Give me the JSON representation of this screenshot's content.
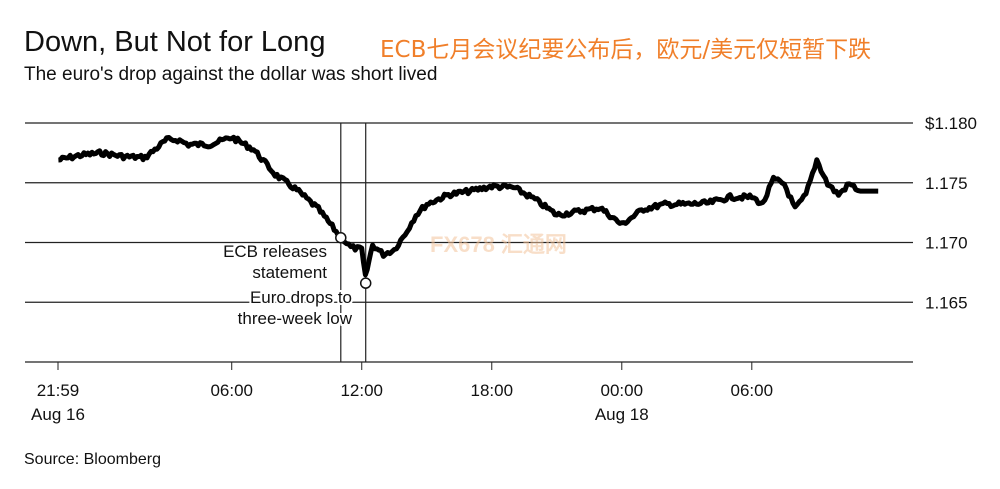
{
  "header": {
    "title": "Down, But Not for Long",
    "overlay_title": "ECB七月会议纪要公布后，欧元/美元仅短暂下跌",
    "subtitle": "The euro's drop against the dollar was short lived"
  },
  "footer": {
    "source": "Source: Bloomberg"
  },
  "watermark": "FX678 汇通网",
  "chart_data": {
    "type": "line",
    "title": "Down, But Not for Long",
    "subtitle": "The euro's drop against the dollar was short lived",
    "ylim": [
      1.16,
      1.18
    ],
    "y_ticks": [
      {
        "v": 1.18,
        "label": "$1.180"
      },
      {
        "v": 1.175,
        "label": "1.175"
      },
      {
        "v": 1.17,
        "label": "1.170"
      },
      {
        "v": 1.165,
        "label": "1.165"
      }
    ],
    "x_ticks": [
      {
        "t": "Aug 16 21:59",
        "label": "21:59",
        "sub": "Aug 16"
      },
      {
        "t": "Aug 17 06:00",
        "label": "06:00",
        "sub": ""
      },
      {
        "t": "Aug 17 12:00",
        "label": "12:00",
        "sub": ""
      },
      {
        "t": "Aug 17 18:00",
        "label": "18:00",
        "sub": ""
      },
      {
        "t": "Aug 18 00:00",
        "label": "00:00",
        "sub": "Aug 18"
      },
      {
        "t": "Aug 18 06:00",
        "label": "06:00",
        "sub": ""
      }
    ],
    "grid": true,
    "line_color": "#000000",
    "points": [
      [
        "Aug 16 22:00",
        1.1769
      ],
      [
        "Aug 16 23:00",
        1.1773
      ],
      [
        "Aug 17 00:00",
        1.1775
      ],
      [
        "Aug 17 01:00",
        1.1772
      ],
      [
        "Aug 17 02:00",
        1.1771
      ],
      [
        "Aug 17 03:00",
        1.1786
      ],
      [
        "Aug 17 03:30",
        1.1786
      ],
      [
        "Aug 17 04:00",
        1.1782
      ],
      [
        "Aug 17 05:00",
        1.1782
      ],
      [
        "Aug 17 06:00",
        1.1788
      ],
      [
        "Aug 17 07:00",
        1.1778
      ],
      [
        "Aug 17 08:00",
        1.1757
      ],
      [
        "Aug 17 09:00",
        1.1744
      ],
      [
        "Aug 17 10:00",
        1.1728
      ],
      [
        "Aug 17 11:00",
        1.1705
      ],
      [
        "Aug 17 11:30",
        1.1696
      ],
      [
        "Aug 17 12:00",
        1.1694
      ],
      [
        "Aug 17 12:10",
        1.1671
      ],
      [
        "Aug 17 12:30",
        1.1698
      ],
      [
        "Aug 17 13:00",
        1.169
      ],
      [
        "Aug 17 13:30",
        1.1694
      ],
      [
        "Aug 17 14:00",
        1.1707
      ],
      [
        "Aug 17 14:30",
        1.1723
      ],
      [
        "Aug 17 15:00",
        1.1732
      ],
      [
        "Aug 17 16:00",
        1.174
      ],
      [
        "Aug 17 17:00",
        1.1743
      ],
      [
        "Aug 17 18:00",
        1.1747
      ],
      [
        "Aug 17 19:00",
        1.1746
      ],
      [
        "Aug 17 20:00",
        1.1736
      ],
      [
        "Aug 17 21:00",
        1.1723
      ],
      [
        "Aug 17 22:00",
        1.1726
      ],
      [
        "Aug 17 23:00",
        1.1729
      ],
      [
        "Aug 18 00:00",
        1.1715
      ],
      [
        "Aug 18 01:00",
        1.1728
      ],
      [
        "Aug 18 02:00",
        1.1732
      ],
      [
        "Aug 18 03:00",
        1.1732
      ],
      [
        "Aug 18 04:00",
        1.1733
      ],
      [
        "Aug 18 05:00",
        1.1738
      ],
      [
        "Aug 18 06:00",
        1.1738
      ],
      [
        "Aug 18 06:30",
        1.1732
      ],
      [
        "Aug 18 07:00",
        1.1753
      ],
      [
        "Aug 18 07:30",
        1.1749
      ],
      [
        "Aug 18 08:00",
        1.1728
      ],
      [
        "Aug 18 08:30",
        1.174
      ],
      [
        "Aug 18 09:00",
        1.1769
      ],
      [
        "Aug 18 09:30",
        1.1749
      ],
      [
        "Aug 18 10:00",
        1.174
      ],
      [
        "Aug 18 10:30",
        1.1749
      ],
      [
        "Aug 18 11:00",
        1.1743
      ],
      [
        "Aug 18 11:50",
        1.1743
      ]
    ],
    "annotations": [
      {
        "t": "Aug 17 11:02",
        "v": 1.1704,
        "lines": [
          "ECB releases",
          "statement"
        ]
      },
      {
        "t": "Aug 17 12:11",
        "v": 1.1666,
        "lines": [
          "Euro drops to",
          "three-week low"
        ]
      }
    ]
  }
}
